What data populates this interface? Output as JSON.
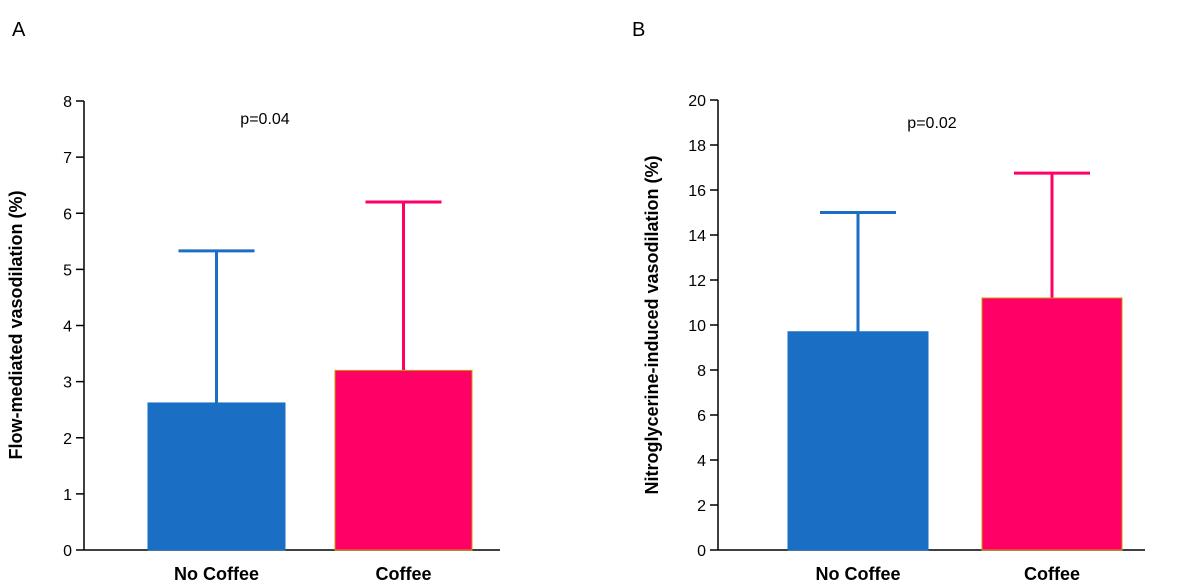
{
  "chart_data": [
    {
      "panel": "A",
      "type": "bar",
      "categories": [
        "No Coffee",
        "Coffee"
      ],
      "values": [
        2.62,
        3.2
      ],
      "error_upper": [
        5.33,
        6.2
      ],
      "ylabel": "Flow-mediated vasodilation (%)",
      "ylim": [
        0,
        8
      ],
      "yticks": [
        0,
        1,
        2,
        3,
        4,
        5,
        6,
        7,
        8
      ],
      "annotation": "p=0.04",
      "colors": {
        "fill": [
          "#1a6fc4",
          "#ff0066"
        ],
        "error": [
          "#1a6fc4",
          "#ff0066"
        ],
        "edge": [
          "#1a6fc4",
          "#cc9900"
        ]
      },
      "grid": false
    },
    {
      "panel": "B",
      "type": "bar",
      "categories": [
        "No Coffee",
        "Coffee"
      ],
      "values": [
        9.7,
        11.2
      ],
      "error_upper": [
        15.0,
        16.75
      ],
      "ylabel": "Nitroglycerine-induced vasodilation (%)",
      "ylim": [
        0,
        20
      ],
      "yticks": [
        0,
        2,
        4,
        6,
        8,
        10,
        12,
        14,
        16,
        18,
        20
      ],
      "annotation": "p=0.02",
      "colors": {
        "fill": [
          "#1a6fc4",
          "#ff0066"
        ],
        "error": [
          "#1a6fc4",
          "#ff0066"
        ],
        "edge": [
          "#1a6fc4",
          "#cc9900"
        ]
      },
      "grid": false
    }
  ]
}
